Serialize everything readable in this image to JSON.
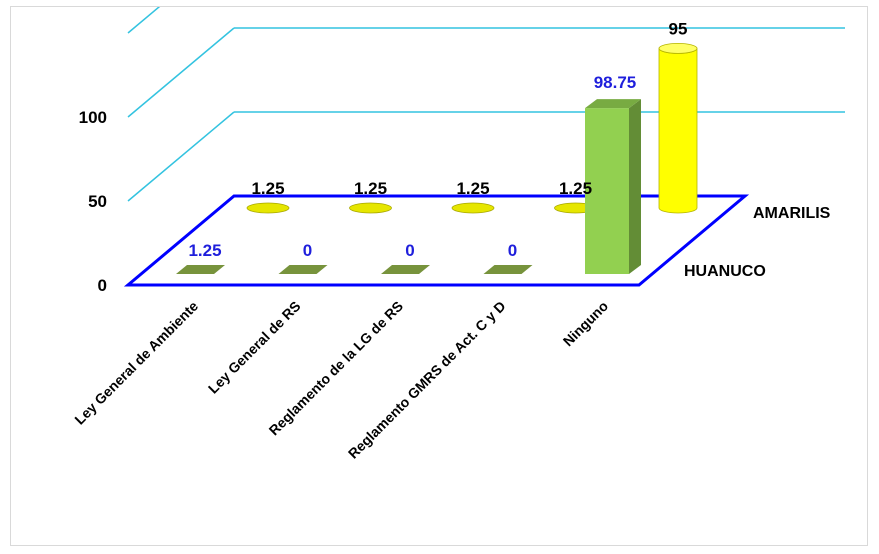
{
  "chart_data": {
    "type": "bar",
    "style": "3d-depth",
    "categories": [
      "Ley General de Ambiente",
      "Ley General de RS",
      "Reglamento de la LG de RS",
      "Reglamento GMRS de Act. C y D",
      "Ninguno"
    ],
    "series": [
      {
        "name": "HUANUCO",
        "values": [
          1.25,
          0,
          0,
          0,
          98.75
        ],
        "labels": [
          "1.25",
          "0",
          "0",
          "0",
          "98.75"
        ],
        "color": "#92d050",
        "label_color": "#1f1fdc",
        "shape": "box"
      },
      {
        "name": "AMARILIS",
        "values": [
          1.25,
          1.25,
          1.25,
          1.25,
          95
        ],
        "labels": [
          "1.25",
          "1.25",
          "1.25",
          "1.25",
          "95"
        ],
        "color": "#ffff00",
        "label_color": "#000000",
        "shape": "cylinder"
      }
    ],
    "yticks": [
      "0",
      "50",
      "100"
    ],
    "ylim": [
      0,
      150
    ],
    "grid": true,
    "gridline_color": "#33c3e0",
    "floor_color": "#0000ff"
  }
}
